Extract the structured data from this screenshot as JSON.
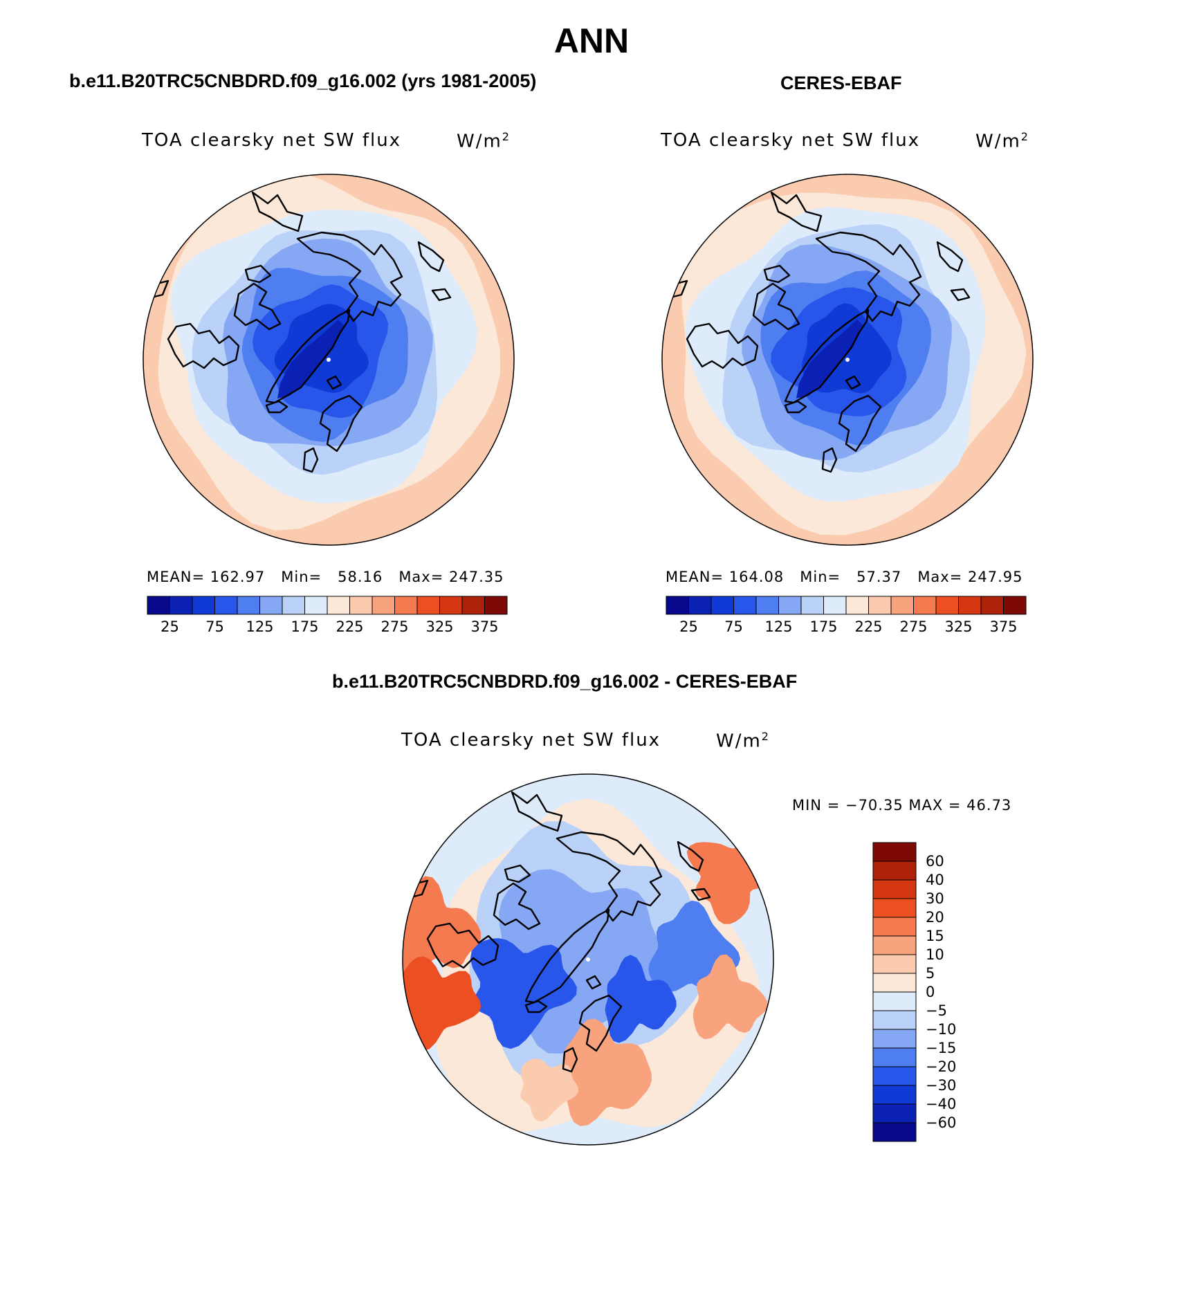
{
  "main_title": "ANN",
  "panels": [
    {
      "id": "model",
      "title": "b.e11.B20TRC5CNBDRD.f09_g16.002 (yrs 1981-2005)",
      "variable": "TOA clearsky net SW flux",
      "units": "W/m",
      "units_sup": "2",
      "mean_label": "MEAN=",
      "mean": "162.97",
      "min_label": "Min=",
      "min": "58.16",
      "max_label": "Max=",
      "max": "247.35"
    },
    {
      "id": "obs",
      "title": "CERES-EBAF",
      "variable": "TOA clearsky net SW flux",
      "units": "W/m",
      "units_sup": "2",
      "mean_label": "MEAN=",
      "mean": "164.08",
      "min_label": "Min=",
      "min": "57.37",
      "max_label": "Max=",
      "max": "247.95"
    },
    {
      "id": "diff",
      "title": "b.e11.B20TRC5CNBDRD.f09_g16.002 - CERES-EBAF",
      "variable": "TOA clearsky net SW flux",
      "units": "W/m",
      "units_sup": "2",
      "minmax_text": "MIN = −70.35 MAX =  46.73"
    }
  ],
  "chart_data": [
    {
      "type": "heatmap",
      "title": "b.e11.B20TRC5CNBDRD.f09_g16.002 (yrs 1981-2005)",
      "subtitle": "TOA clearsky net SW flux",
      "units": "W/m2",
      "projection": "north polar stereographic",
      "stats": {
        "mean": 162.97,
        "min": 58.16,
        "max": 247.35
      },
      "colorbar_ticks": [
        "25",
        "75",
        "125",
        "175",
        "225",
        "275",
        "325",
        "375"
      ],
      "colorbar_colors": [
        "#08088c",
        "#0a21b4",
        "#0f3ad6",
        "#2856ea",
        "#4f7ef0",
        "#85a7f4",
        "#bad1f8",
        "#ddebfb",
        "#fbe8d8",
        "#fbcbb0",
        "#f8a27e",
        "#f57a4f",
        "#ec4f22",
        "#d53712",
        "#ad2108",
        "#7e0a05"
      ]
    },
    {
      "type": "heatmap",
      "title": "CERES-EBAF",
      "subtitle": "TOA clearsky net SW flux",
      "units": "W/m2",
      "projection": "north polar stereographic",
      "stats": {
        "mean": 164.08,
        "min": 57.37,
        "max": 247.95
      },
      "colorbar_ticks": [
        "25",
        "75",
        "125",
        "175",
        "225",
        "275",
        "325",
        "375"
      ],
      "colorbar_colors": [
        "#08088c",
        "#0a21b4",
        "#0f3ad6",
        "#2856ea",
        "#4f7ef0",
        "#85a7f4",
        "#bad1f8",
        "#ddebfb",
        "#fbe8d8",
        "#fbcbb0",
        "#f8a27e",
        "#f57a4f",
        "#ec4f22",
        "#d53712",
        "#ad2108",
        "#7e0a05"
      ]
    },
    {
      "type": "heatmap",
      "title": "b.e11.B20TRC5CNBDRD.f09_g16.002 - CERES-EBAF",
      "subtitle": "TOA clearsky net SW flux",
      "units": "W/m2",
      "projection": "north polar stereographic",
      "stats": {
        "min": -70.35,
        "max": 46.73
      },
      "colorbar_ticks": [
        "60",
        "40",
        "30",
        "20",
        "15",
        "10",
        "5",
        "0",
        "−5",
        "−10",
        "−15",
        "−20",
        "−30",
        "−40",
        "−60"
      ],
      "colorbar_colors": [
        "#7e0a05",
        "#ad2108",
        "#d53712",
        "#ec4f22",
        "#f57a4f",
        "#f8a27e",
        "#fbcbb0",
        "#fbe8d8",
        "#ddebfb",
        "#bad1f8",
        "#85a7f4",
        "#4f7ef0",
        "#2856ea",
        "#0f3ad6",
        "#0a21b4",
        "#08088c"
      ]
    }
  ]
}
